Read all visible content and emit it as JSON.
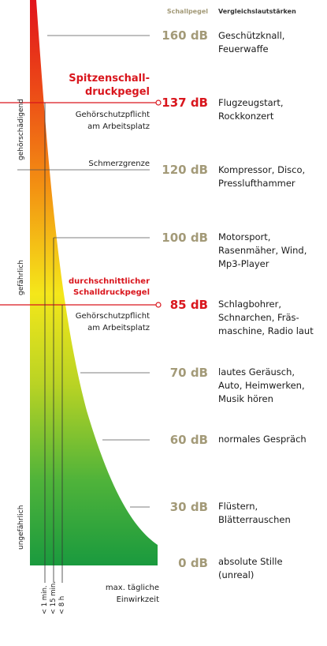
{
  "header": {
    "schallpegel": "Schallpegel",
    "vergleich": "Vergleichslautstärken"
  },
  "levels": [
    {
      "db": "160 dB",
      "comparison": [
        "Geschützknall,",
        "Feuerwaffe"
      ]
    },
    {
      "db": "137 dB",
      "comparison": [
        "Flugzeugstart,",
        "Rockkonzert"
      ]
    },
    {
      "db": "120 dB",
      "comparison": [
        "Kompressor, Disco,",
        "Presslufthammer"
      ]
    },
    {
      "db": "100 dB",
      "comparison": [
        "Motorsport,",
        "Rasenmäher, Wind,",
        "Mp3-Player"
      ]
    },
    {
      "db": "85 dB",
      "comparison": [
        "Schlagbohrer,",
        "Schnarchen, Fräs-",
        "maschine, Radio laut"
      ]
    },
    {
      "db": "70 dB",
      "comparison": [
        "lautes Geräusch,",
        "Auto, Heimwerken,",
        "Musik hören"
      ]
    },
    {
      "db": "60 dB",
      "comparison": [
        "normales Gespräch"
      ]
    },
    {
      "db": "30 dB",
      "comparison": [
        "Flüstern,",
        "Blätterrauschen"
      ]
    },
    {
      "db": "0 dB",
      "comparison": [
        "absolute Stille",
        "(unreal)"
      ]
    }
  ],
  "peak": {
    "title": [
      "Spitzenschall-",
      "druckpegel"
    ],
    "note": [
      "Gehörschutzpflicht",
      "am Arbeitsplatz"
    ]
  },
  "pain_threshold": "Schmerzgrenze",
  "average": {
    "title": [
      "durchschnittlicher",
      "Schalldruckpegel"
    ],
    "note": [
      "Gehörschutzpflicht",
      "am Arbeitsplatz"
    ]
  },
  "zones": {
    "damaging": "gehörschädigend",
    "dangerous": "gefährlich",
    "harmless": "ungefährlich"
  },
  "durations": [
    "< 1 min.",
    "< 15 min.",
    "< 8 h"
  ],
  "footer": [
    "max. tägliche",
    "Einwirkzeit"
  ],
  "colors": {
    "red": "#d9161d",
    "orange": "#f29112",
    "yellow": "#f3ec1a",
    "green": "#1a9a3e",
    "db_label": "#a39a78"
  }
}
